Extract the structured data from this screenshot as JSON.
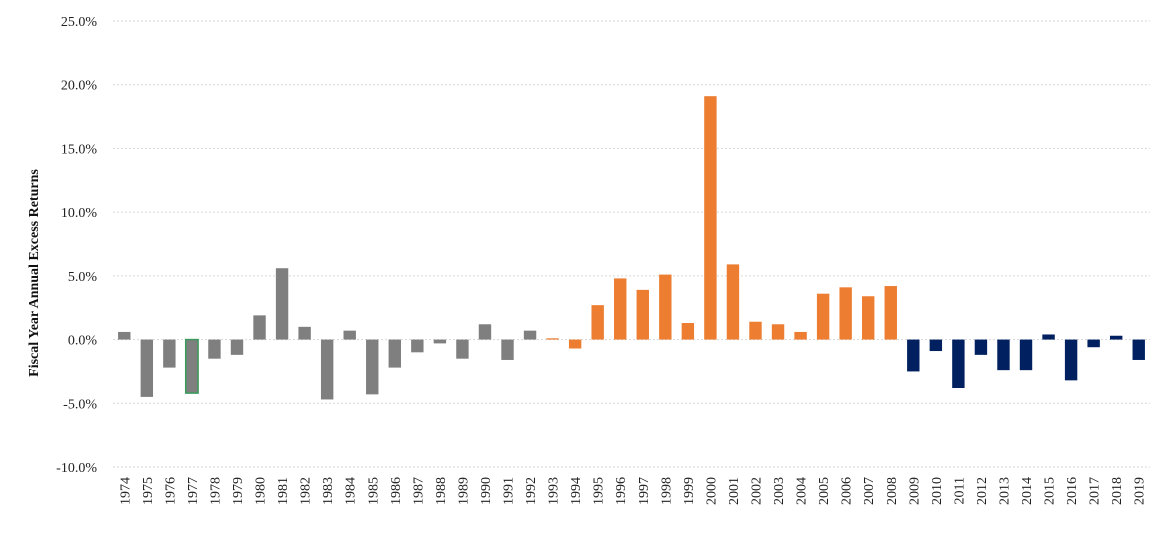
{
  "chart_data": {
    "type": "bar",
    "title": "",
    "xlabel": "",
    "ylabel": "Fiscal Year Annual Excess Returns",
    "ylim": [
      -10,
      25
    ],
    "yticks": [
      "25.0%",
      "20.0%",
      "15.0%",
      "10.0%",
      "5.0%",
      "0.0%",
      "-5.0%",
      "-10.0%"
    ],
    "ytick_values": [
      25,
      20,
      15,
      10,
      5,
      0,
      -5,
      -10
    ],
    "grid": true,
    "legend": "none",
    "colors": {
      "gray": "#7f7f7f",
      "orange": "#ed7d31",
      "navy": "#002060",
      "green": "#3a9b5c"
    },
    "categories": [
      "1974",
      "1975",
      "1976",
      "1977",
      "1978",
      "1979",
      "1980",
      "1981",
      "1982",
      "1983",
      "1984",
      "1985",
      "1986",
      "1987",
      "1988",
      "1989",
      "1990",
      "1991",
      "1992",
      "1993",
      "1994",
      "1995",
      "1996",
      "1997",
      "1998",
      "1999",
      "2000",
      "2001",
      "2002",
      "2003",
      "2004",
      "2005",
      "2006",
      "2007",
      "2008",
      "2009",
      "2010",
      "2011",
      "2012",
      "2013",
      "2014",
      "2015",
      "2016",
      "2017",
      "2018",
      "2019"
    ],
    "values": [
      0.6,
      -4.5,
      -2.2,
      -4.2,
      -1.5,
      -1.2,
      1.9,
      5.6,
      1.0,
      -4.7,
      0.7,
      -4.3,
      -2.2,
      -1.0,
      -0.3,
      -1.5,
      1.2,
      -1.6,
      0.7,
      0.1,
      -0.7,
      2.7,
      4.8,
      3.9,
      5.1,
      1.3,
      19.1,
      5.9,
      1.4,
      1.2,
      0.6,
      3.6,
      4.1,
      3.4,
      4.2,
      -2.5,
      -0.9,
      -3.8,
      -1.2,
      -2.4,
      -2.4,
      0.4,
      -3.2,
      -0.6,
      0.3,
      -1.6
    ],
    "bar_colors": [
      "gray",
      "gray",
      "gray",
      "green",
      "gray",
      "gray",
      "gray",
      "gray",
      "gray",
      "gray",
      "gray",
      "gray",
      "gray",
      "gray",
      "gray",
      "gray",
      "gray",
      "gray",
      "gray",
      "orange",
      "orange",
      "orange",
      "orange",
      "orange",
      "orange",
      "orange",
      "orange",
      "orange",
      "orange",
      "orange",
      "orange",
      "orange",
      "orange",
      "orange",
      "orange",
      "navy",
      "navy",
      "navy",
      "navy",
      "navy",
      "navy",
      "navy",
      "navy",
      "navy",
      "navy",
      "navy"
    ]
  }
}
